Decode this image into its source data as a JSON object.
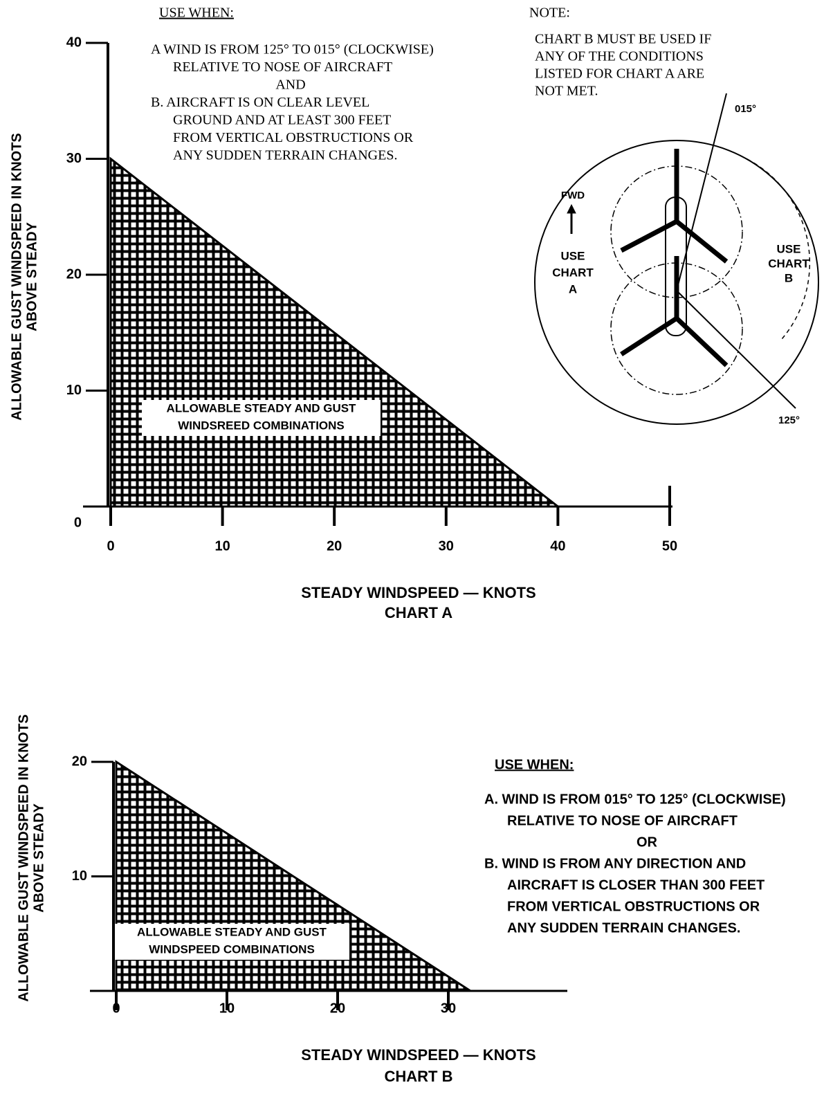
{
  "chart_data": [
    {
      "type": "area",
      "title": "CHART A",
      "x_label": "STEADY WINDSPEED — KNOTS",
      "y_label": [
        "ALLOWABLE GUST WINDSPEED IN KNOTS",
        "ABOVE STEADY"
      ],
      "x": [
        0,
        40
      ],
      "series": [
        {
          "color": "#000000",
          "values": [
            30,
            0
          ]
        }
      ],
      "region_label": [
        "ALLOWABLE STEADY AND GUST",
        "WINDSREED COMBINATIONS"
      ],
      "xlim": [
        0,
        50
      ],
      "xticks": [
        0,
        10,
        20,
        30,
        40,
        50
      ],
      "ylim": [
        0,
        40
      ],
      "yticks": [
        0,
        10,
        20,
        30,
        40
      ],
      "use_when": {
        "heading": "USE WHEN:",
        "lines": [
          "A WIND IS FROM 125° TO 015° (CLOCKWISE)",
          "RELATIVE TO NOSE OF AIRCRAFT",
          "AND",
          "B. AIRCRAFT IS ON CLEAR LEVEL",
          "GROUND AND AT LEAST 300 FEET",
          "FROM VERTICAL OBSTRUCTIONS OR",
          "ANY SUDDEN TERRAIN CHANGES."
        ]
      },
      "note": {
        "heading": "NOTE:",
        "lines": [
          "CHART B MUST BE USED IF",
          "ANY OF THE CONDITIONS",
          "LISTED FOR CHART A ARE",
          "NOT MET."
        ]
      },
      "diagram": {
        "angle_top": "015°",
        "angle_bottom": "125°",
        "forward": "FWD",
        "chart_a": [
          "USE",
          "CHART",
          "A"
        ],
        "chart_b": [
          "USE",
          "CHART",
          "B"
        ]
      }
    },
    {
      "type": "area",
      "title": "CHART B",
      "x_label": "STEADY WINDSPEED — KNOTS",
      "y_label": [
        "ALLOWABLE GUST WINDSPEED IN KNOTS",
        "ABOVE STEADY"
      ],
      "x": [
        0,
        32
      ],
      "series": [
        {
          "color": "#000000",
          "values": [
            20,
            0
          ]
        }
      ],
      "region_label": [
        "ALLOWABLE STEADY AND GUST",
        "WINDSPEED COMBINATIONS"
      ],
      "xlim": [
        0,
        40
      ],
      "xticks": [
        0,
        10,
        20,
        30
      ],
      "ylim": [
        0,
        20
      ],
      "yticks": [
        10,
        20
      ],
      "use_when": {
        "heading": "USE WHEN:",
        "lines": [
          "A. WIND IS FROM 015° TO 125° (CLOCKWISE)",
          "RELATIVE TO NOSE OF AIRCRAFT",
          "OR",
          "B. WIND IS FROM ANY DIRECTION AND",
          "AIRCRAFT IS CLOSER THAN 300 FEET",
          "FROM VERTICAL OBSTRUCTIONS OR",
          "ANY SUDDEN TERRAIN CHANGES."
        ]
      }
    }
  ]
}
